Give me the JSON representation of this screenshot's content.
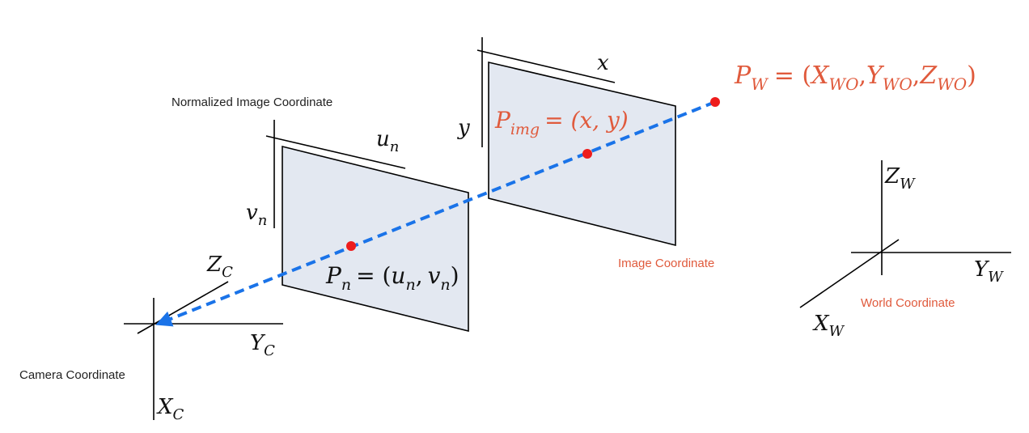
{
  "colors": {
    "plane_fill": "#e3e8f1",
    "ray": "#1a73e8",
    "point": "#ee1c1c",
    "accent_text": "#e05a3c"
  },
  "camera": {
    "label": "Camera Coordinate",
    "z_axis": {
      "base": "Z",
      "sub": "C"
    },
    "y_axis": {
      "base": "Y",
      "sub": "C"
    },
    "x_axis": {
      "base": "X",
      "sub": "C"
    }
  },
  "normalized_plane": {
    "label": "Normalized Image Coordinate",
    "u_axis": {
      "base": "u",
      "sub": "n"
    },
    "v_axis": {
      "base": "v",
      "sub": "n"
    },
    "point": {
      "base": "P",
      "sub": "n",
      "eq": "= (",
      "u": "u",
      "u_sub": "n",
      "comma": ",",
      "v": "v",
      "v_sub": "n",
      "close": ")"
    }
  },
  "image_plane": {
    "label": "Image Coordinate",
    "x_axis": "x",
    "y_axis": "y",
    "point": {
      "base": "P",
      "sub": "img",
      "rest": "= (x, y)"
    }
  },
  "world": {
    "label": "World Coordinate",
    "z_axis": {
      "base": "Z",
      "sub": "W"
    },
    "y_axis": {
      "base": "Y",
      "sub": "W"
    },
    "x_axis": {
      "base": "X",
      "sub": "W"
    },
    "point": {
      "base": "P",
      "sub": "W",
      "eq": "= (",
      "x": "X",
      "x_sub": "W",
      "x_subsub": "O",
      "y": "Y",
      "y_sub": "W",
      "y_subsub": "O",
      "z": "Z",
      "z_sub": "W",
      "z_subsub": "O",
      "comma": ",",
      "close": ")"
    }
  }
}
